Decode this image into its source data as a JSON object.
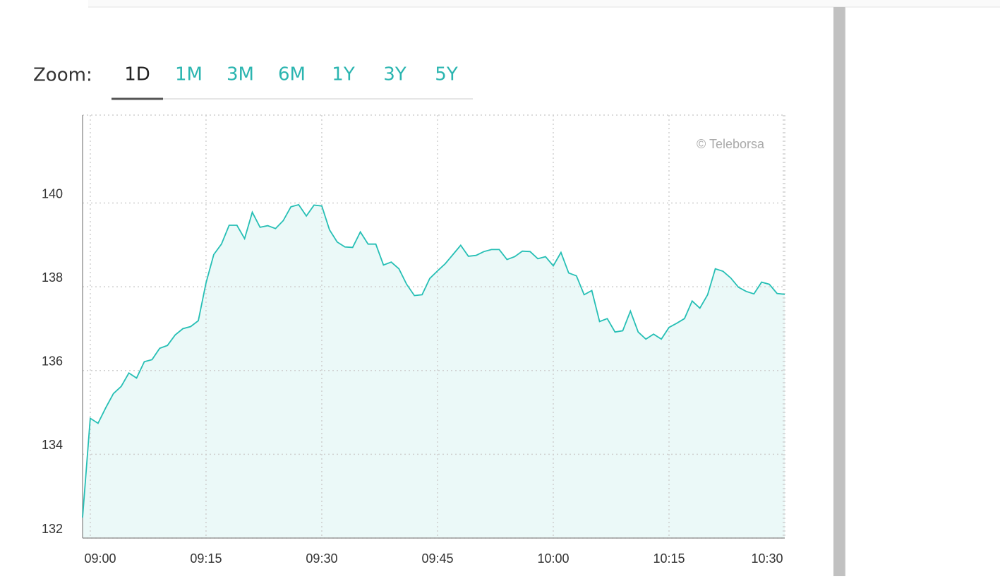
{
  "zoom": {
    "label": "Zoom:",
    "options": [
      "1D",
      "1M",
      "3M",
      "6M",
      "1Y",
      "3Y",
      "5Y"
    ],
    "active": 0
  },
  "chart_data": {
    "type": "area",
    "credit": "© Teleborsa",
    "color": "#26bfb5",
    "x": [
      "08:59",
      "09:00",
      "09:01",
      "09:02",
      "09:03",
      "09:04",
      "09:05",
      "09:06",
      "09:07",
      "09:08",
      "09:09",
      "09:10",
      "09:11",
      "09:12",
      "09:13",
      "09:14",
      "09:15",
      "09:16",
      "09:17",
      "09:18",
      "09:19",
      "09:20",
      "09:21",
      "09:22",
      "09:23",
      "09:24",
      "09:25",
      "09:26",
      "09:27",
      "09:28",
      "09:29",
      "09:30",
      "09:31",
      "09:32",
      "09:33",
      "09:34",
      "09:35",
      "09:36",
      "09:37",
      "09:38",
      "09:39",
      "09:40",
      "09:41",
      "09:42",
      "09:43",
      "09:44",
      "09:45",
      "09:46",
      "09:47",
      "09:48",
      "09:49",
      "09:50",
      "09:51",
      "09:52",
      "09:53",
      "09:54",
      "09:55",
      "09:56",
      "09:57",
      "09:58",
      "09:59",
      "10:00",
      "10:01",
      "10:02",
      "10:03",
      "10:04",
      "10:05",
      "10:06",
      "10:07",
      "10:08",
      "10:09",
      "10:10",
      "10:11",
      "10:12",
      "10:13",
      "10:14",
      "10:15",
      "10:16",
      "10:17",
      "10:18",
      "10:19",
      "10:20",
      "10:21",
      "10:22",
      "10:23",
      "10:24",
      "10:25",
      "10:26",
      "10:27",
      "10:28",
      "10:29",
      "10:30"
    ],
    "values": [
      132.49,
      134.86,
      134.74,
      135.11,
      135.45,
      135.62,
      135.94,
      135.82,
      136.21,
      136.26,
      136.53,
      136.6,
      136.85,
      137.0,
      137.05,
      137.19,
      138.09,
      138.77,
      139.02,
      139.47,
      139.47,
      139.15,
      139.78,
      139.42,
      139.46,
      139.39,
      139.58,
      139.91,
      139.96,
      139.69,
      139.95,
      139.93,
      139.36,
      139.07,
      138.95,
      138.94,
      139.31,
      139.02,
      139.02,
      138.52,
      138.59,
      138.43,
      138.06,
      137.79,
      137.81,
      138.2,
      138.38,
      138.55,
      138.77,
      138.99,
      138.73,
      138.75,
      138.84,
      138.89,
      138.89,
      138.65,
      138.72,
      138.85,
      138.84,
      138.67,
      138.72,
      138.5,
      138.82,
      138.33,
      138.26,
      137.81,
      137.91,
      137.17,
      137.24,
      136.92,
      136.95,
      137.42,
      136.92,
      136.75,
      136.87,
      136.75,
      137.03,
      137.13,
      137.24,
      137.66,
      137.49,
      137.81,
      138.43,
      138.37,
      138.21,
      137.99,
      137.89,
      137.83,
      138.11,
      138.06,
      137.84,
      137.82
    ],
    "xlim": [
      "08:59",
      "10:30"
    ],
    "xticks": [
      "09:00",
      "09:15",
      "09:30",
      "09:45",
      "10:00",
      "10:15",
      "10:30"
    ],
    "ylim": [
      132,
      142.1
    ],
    "yticks": [
      132,
      134,
      136,
      138,
      140
    ],
    "grid": true
  }
}
